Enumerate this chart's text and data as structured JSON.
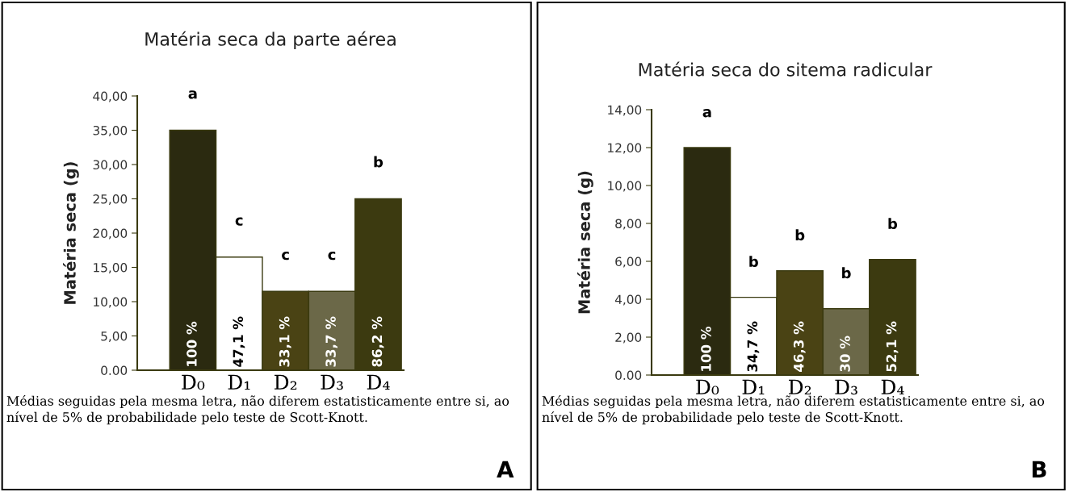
{
  "chart_data": [
    {
      "type": "bar",
      "title": "Matéria seca da parte aérea",
      "ylabel": "Matéria seca (g)",
      "categories": [
        "D₀",
        "D₁",
        "D₂",
        "D₃",
        "D₄"
      ],
      "values": [
        35,
        16.5,
        11.5,
        11.5,
        25
      ],
      "colors": [
        "#2b2a10",
        "#ffffff",
        "#4a4314",
        "#6b6848",
        "#3c3a10"
      ],
      "ylim": [
        0,
        40
      ],
      "yticks": [
        {
          "value": 0,
          "label": "0.00"
        },
        {
          "value": 5,
          "label": "5,00"
        },
        {
          "value": 10,
          "label": "10,00"
        },
        {
          "value": 15,
          "label": "15,00"
        },
        {
          "value": 20,
          "label": "20,00"
        },
        {
          "value": 25,
          "label": "25,00"
        },
        {
          "value": 30,
          "label": "30,00"
        },
        {
          "value": 35,
          "label": "35,00"
        },
        {
          "value": 40,
          "label": "40,00"
        }
      ],
      "grid": false,
      "annotations": [
        "a",
        "c",
        "c",
        "c",
        "b",
        "100 %",
        "47,1 %",
        "33,1 %",
        "33,7 %",
        "86,2 %",
        "Médias seguidas pela mesma letra, não diferem estatisticamente entre si, ao nível de 5% de probabilidade pelo teste de Scott-Knott.",
        "A"
      ]
    },
    {
      "type": "bar",
      "title": "Matéria seca do sitema radicular",
      "ylabel": "Matéria seca (g)",
      "categories": [
        "D₀",
        "D₁",
        "D₂",
        "D₃",
        "D₄"
      ],
      "values": [
        12,
        4.1,
        5.5,
        3.5,
        6.1
      ],
      "colors": [
        "#2b2a10",
        "#ffffff",
        "#4a4314",
        "#6b6848",
        "#3c3a10"
      ],
      "ylim": [
        0,
        14
      ],
      "yticks": [
        {
          "value": 0,
          "label": "0.00"
        },
        {
          "value": 2,
          "label": "2,00"
        },
        {
          "value": 4,
          "label": "4,00"
        },
        {
          "value": 6,
          "label": "6,00"
        },
        {
          "value": 8,
          "label": "8,00"
        },
        {
          "value": 10,
          "label": "10,00"
        },
        {
          "value": 12,
          "label": "12,00"
        },
        {
          "value": 14,
          "label": "14,00"
        }
      ],
      "grid": false,
      "annotations": [
        "a",
        "b",
        "b",
        "b",
        "b",
        "100 %",
        "34,7 %",
        "46,3 %",
        "30 %",
        "52,1 %",
        "Médias seguidas pela mesma letra, não diferem estatisticamente entre si, ao nível de 5% de probabilidade pelo teste de Scott-Knott.",
        "B"
      ]
    }
  ]
}
